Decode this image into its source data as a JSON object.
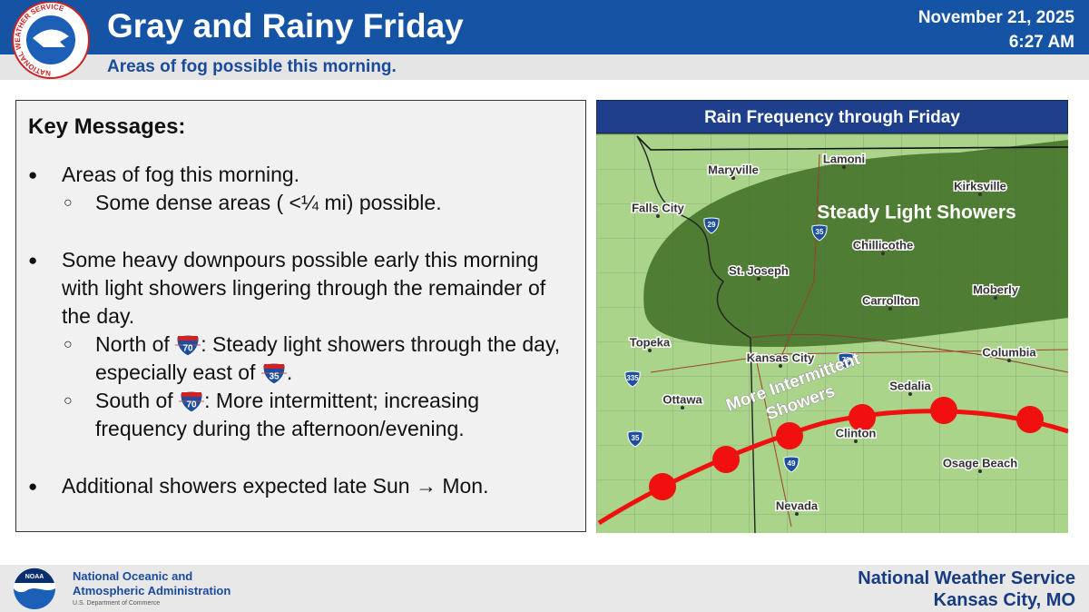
{
  "header": {
    "title": "Gray and Rainy Friday",
    "subtitle": "Areas of fog possible this morning.",
    "date": "November 21, 2025",
    "time": "6:27 AM",
    "logo_text": "NATIONAL WEATHER SERVICE"
  },
  "key_messages": {
    "heading": "Key Messages:",
    "bullets": [
      {
        "text": "Areas of fog this morning.",
        "subs": [
          [
            "Some dense areas ( <¼ mi) possible."
          ]
        ]
      },
      {
        "text": "Some heavy downpours possible early this morning with light showers lingering through the remainder of the day.",
        "subs": [
          [
            "North of ",
            {
              "shield": "70"
            },
            ": Steady light showers through the day, especially east of ",
            {
              "shield": "35"
            },
            "."
          ],
          [
            "South of ",
            {
              "shield": "70"
            },
            ": More intermittent; increasing frequency during the afternoon/evening."
          ]
        ]
      },
      {
        "text": "Additional showers expected late Sun → Mon."
      }
    ]
  },
  "map": {
    "title": "Rain Frequency through Friday",
    "cities": [
      "Lamoni",
      "Maryville",
      "Kirksville",
      "Falls City",
      "Chillicothe",
      "St. Joseph",
      "Carrollton",
      "Moberly",
      "Topeka",
      "Kansas City",
      "Columbia",
      "Ottawa",
      "Sedalia",
      "Clinton",
      "Osage Beach",
      "Nevada"
    ],
    "regions": [
      [
        "Steady Light Showers"
      ],
      [
        "More Intermittent",
        "Showers"
      ]
    ],
    "shields": [
      "29",
      "35",
      "70",
      "335",
      "35",
      "49"
    ]
  },
  "footer": {
    "noaa_logo": "NOAA",
    "noaa": [
      "National Oceanic and",
      "Atmospheric Administration",
      "U.S. Department of Commerce"
    ],
    "office": [
      "National Weather Service",
      "Kansas City, MO"
    ]
  }
}
